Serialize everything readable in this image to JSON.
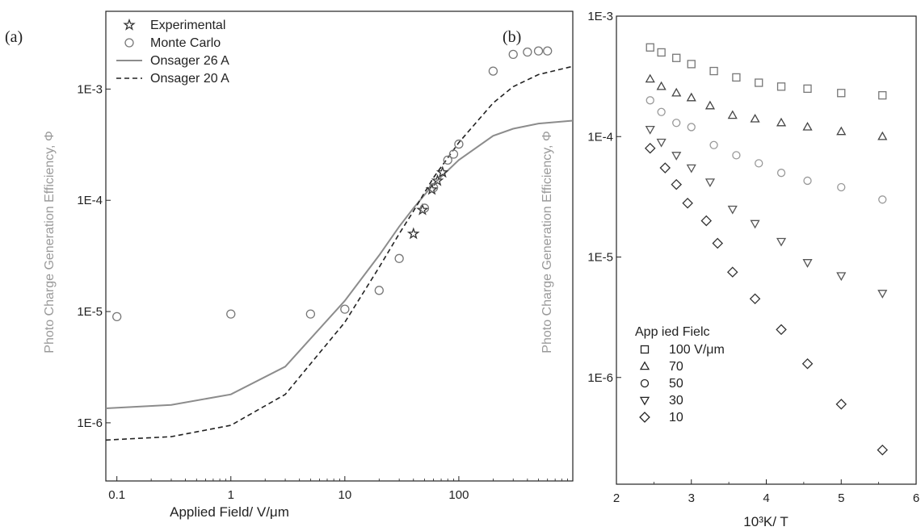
{
  "chart_data": [
    {
      "type": "line",
      "panel_label": "(a)",
      "xlabel": "Applied Field/ V/μm",
      "ylabel": "Photo Charge Generation Efficiency, Φ",
      "xscale": "log",
      "yscale": "log",
      "xlim": [
        0.08,
        1000
      ],
      "ylim": [
        3e-07,
        0.005
      ],
      "x_ticks": [
        0.1,
        1,
        10,
        100
      ],
      "x_tick_labels": [
        "0.1",
        "1",
        "10",
        "100"
      ],
      "y_ticks": [
        1e-06,
        1e-05,
        0.0001,
        0.001
      ],
      "y_tick_labels": [
        "1E-6",
        "1E-5",
        "1E-4",
        "1E-3"
      ],
      "legend_position": "top-left",
      "series": [
        {
          "name": "Experimental",
          "style": "star-marker",
          "color": "#333333",
          "x": [
            40,
            48,
            58,
            65,
            72
          ],
          "y": [
            5e-05,
            8.2e-05,
            0.000125,
            0.00015,
            0.000178
          ]
        },
        {
          "name": "Monte Carlo",
          "style": "circle-marker",
          "color": "#777777",
          "x": [
            0.1,
            1,
            5,
            10,
            20,
            30,
            50,
            60,
            80,
            90,
            100,
            200,
            300,
            400,
            500,
            600
          ],
          "y": [
            9e-06,
            9.5e-06,
            9.5e-06,
            1.05e-05,
            1.55e-05,
            3e-05,
            8.5e-05,
            0.00013,
            0.00023,
            0.00026,
            0.00032,
            0.00145,
            0.00205,
            0.00215,
            0.0022,
            0.0022
          ]
        },
        {
          "name": "Onsager 26 A",
          "style": "solid-line",
          "color": "#8c8c8c",
          "x": [
            0.08,
            0.3,
            1,
            3,
            10,
            20,
            30,
            40,
            60,
            100,
            200,
            300,
            500,
            1000
          ],
          "y": [
            1.35e-06,
            1.45e-06,
            1.8e-06,
            3.2e-06,
            1.25e-05,
            3.2e-05,
            5.8e-05,
            8.5e-05,
            0.00014,
            0.00023,
            0.00038,
            0.00044,
            0.00049,
            0.00052
          ]
        },
        {
          "name": "Onsager 20 A",
          "style": "dashed-line",
          "color": "#222222",
          "x": [
            0.08,
            0.3,
            1,
            3,
            10,
            20,
            30,
            40,
            60,
            100,
            200,
            300,
            500,
            1000
          ],
          "y": [
            7e-07,
            7.5e-07,
            9.5e-07,
            1.8e-06,
            8e-06,
            2.5e-05,
            5e-05,
            8e-05,
            0.00016,
            0.00033,
            0.00075,
            0.00105,
            0.00135,
            0.0016
          ]
        }
      ]
    },
    {
      "type": "scatter",
      "panel_label": "(b)",
      "xlabel": "10³K/ T",
      "ylabel": "Photo Charge Generation Efficiency, Φ",
      "xscale": "linear",
      "yscale": "log",
      "xlim": [
        2,
        6
      ],
      "ylim": [
        1.3e-07,
        0.001
      ],
      "x_ticks": [
        2,
        3,
        4,
        5,
        6
      ],
      "x_tick_labels": [
        "2",
        "3",
        "4",
        "5",
        "6"
      ],
      "y_ticks": [
        1e-06,
        1e-05,
        0.0001,
        0.001
      ],
      "y_tick_labels": [
        "1E-6",
        "1E-5",
        "1E-4",
        "1E-3"
      ],
      "legend_title": "App ied Fielc",
      "legend_position": "bottom-left",
      "series": [
        {
          "name": "100 V/μm",
          "marker": "square",
          "color": "#777777",
          "x": [
            2.45,
            2.6,
            2.8,
            3.0,
            3.3,
            3.6,
            3.9,
            4.2,
            4.55,
            5.0,
            5.55
          ],
          "y": [
            0.00055,
            0.0005,
            0.00045,
            0.0004,
            0.00035,
            0.00031,
            0.00028,
            0.00026,
            0.00025,
            0.00023,
            0.00022
          ]
        },
        {
          "name": "70",
          "marker": "triangle-up",
          "color": "#444444",
          "x": [
            2.45,
            2.6,
            2.8,
            3.0,
            3.25,
            3.55,
            3.85,
            4.2,
            4.55,
            5.0,
            5.55
          ],
          "y": [
            0.0003,
            0.00026,
            0.00023,
            0.00021,
            0.00018,
            0.00015,
            0.00014,
            0.00013,
            0.00012,
            0.00011,
            0.0001
          ]
        },
        {
          "name": "50",
          "marker": "circle",
          "color": "#999999",
          "x": [
            2.45,
            2.6,
            2.8,
            3.0,
            3.3,
            3.6,
            3.9,
            4.2,
            4.55,
            5.0,
            5.55
          ],
          "y": [
            0.0002,
            0.00016,
            0.00013,
            0.00012,
            8.5e-05,
            7e-05,
            6e-05,
            5e-05,
            4.3e-05,
            3.8e-05,
            3e-05
          ]
        },
        {
          "name": "30",
          "marker": "triangle-down",
          "color": "#555555",
          "x": [
            2.45,
            2.6,
            2.8,
            3.0,
            3.25,
            3.55,
            3.85,
            4.2,
            4.55,
            5.0,
            5.55
          ],
          "y": [
            0.000115,
            9e-05,
            7e-05,
            5.5e-05,
            4.2e-05,
            2.5e-05,
            1.9e-05,
            1.35e-05,
            9e-06,
            7e-06,
            5e-06
          ]
        },
        {
          "name": "10",
          "marker": "diamond",
          "color": "#333333",
          "x": [
            2.45,
            2.65,
            2.8,
            2.95,
            3.2,
            3.35,
            3.55,
            3.85,
            4.2,
            4.55,
            5.0,
            5.55
          ],
          "y": [
            8e-05,
            5.5e-05,
            4e-05,
            2.8e-05,
            2e-05,
            1.3e-05,
            7.5e-06,
            4.5e-06,
            2.5e-06,
            1.3e-06,
            6e-07,
            2.5e-07
          ]
        }
      ]
    }
  ]
}
